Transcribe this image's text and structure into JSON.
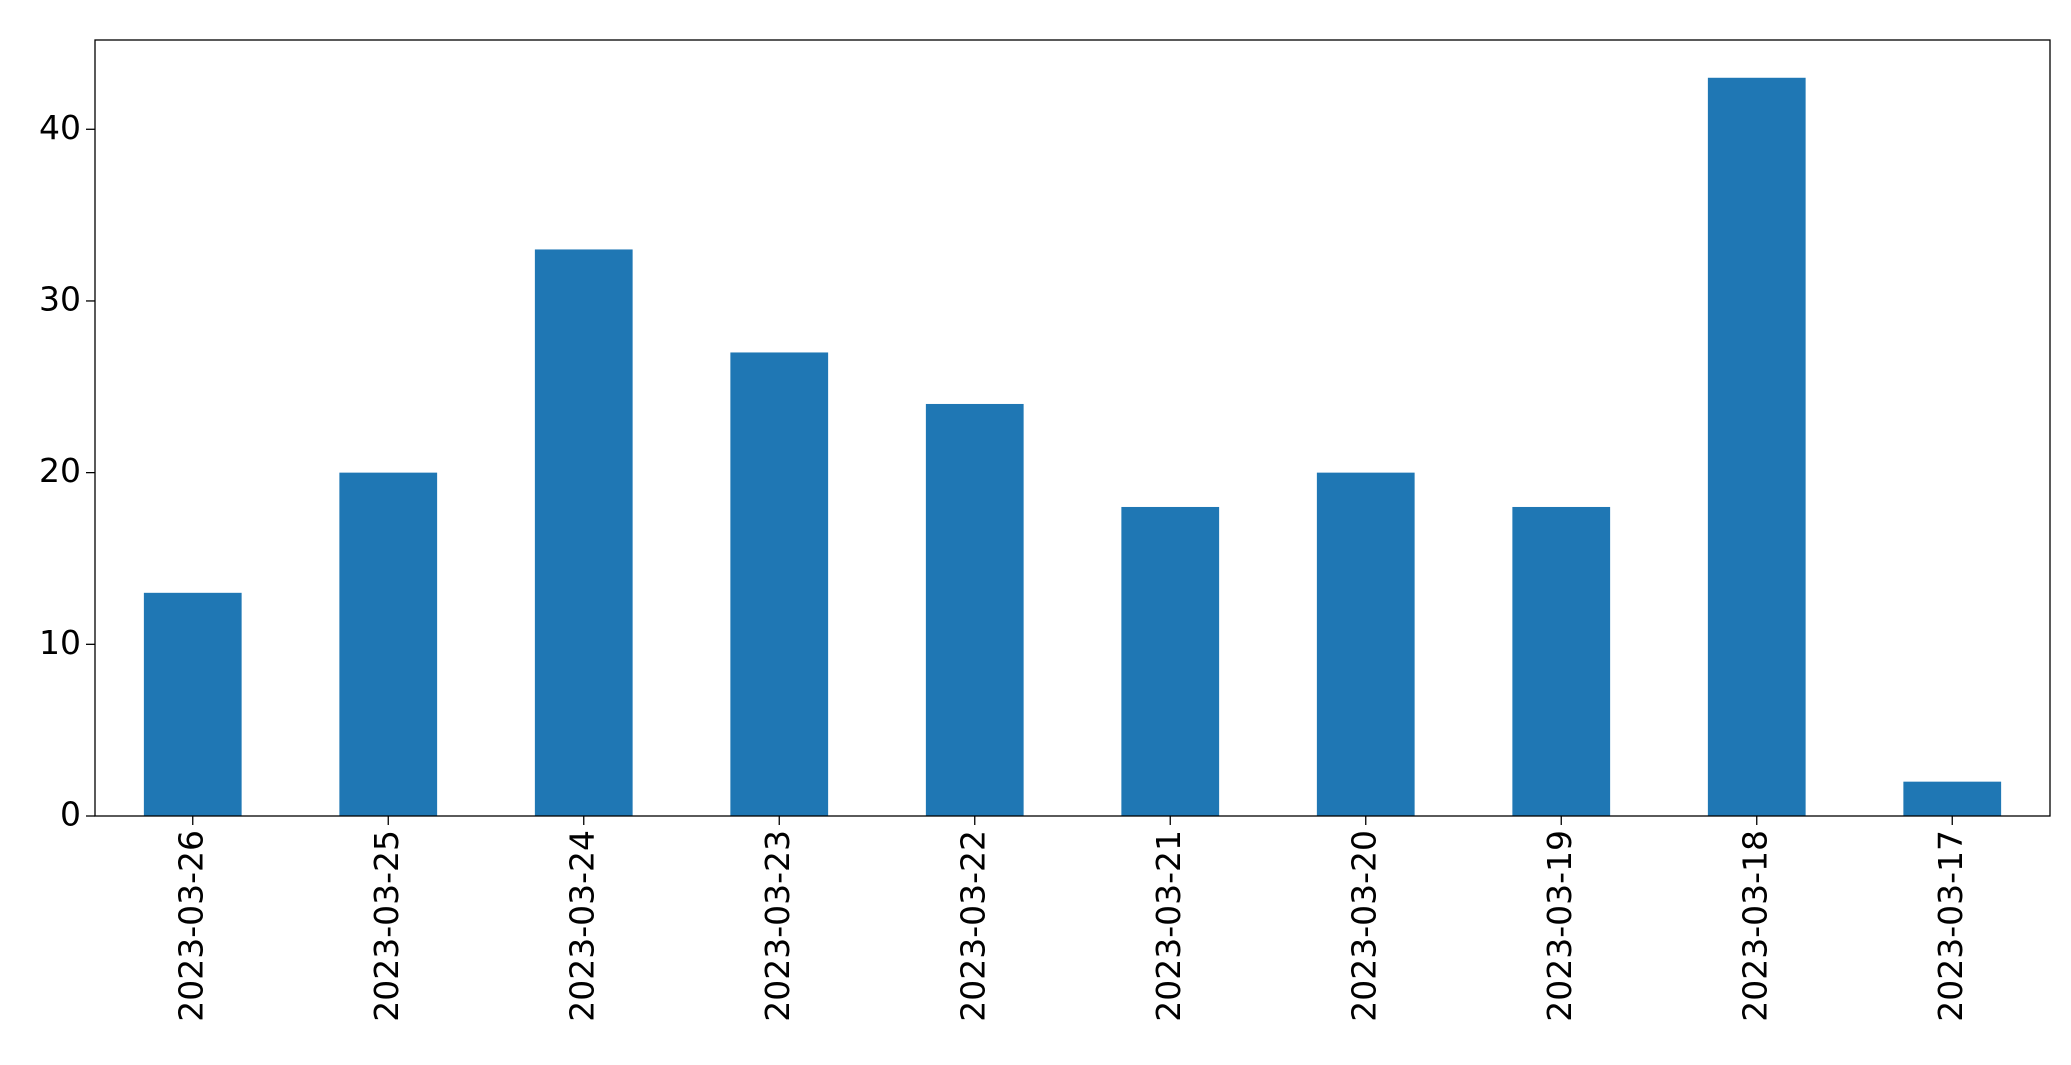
{
  "chart_data": {
    "type": "bar",
    "categories": [
      "2023-03-26",
      "2023-03-25",
      "2023-03-24",
      "2023-03-23",
      "2023-03-22",
      "2023-03-21",
      "2023-03-20",
      "2023-03-19",
      "2023-03-18",
      "2023-03-17"
    ],
    "values": [
      13,
      20,
      33,
      27,
      24,
      18,
      20,
      18,
      43,
      2
    ],
    "color": "#1f77b4",
    "ylim": [
      0,
      45.2
    ],
    "yticks": [
      0,
      10,
      20,
      30,
      40
    ],
    "grid": false
  }
}
